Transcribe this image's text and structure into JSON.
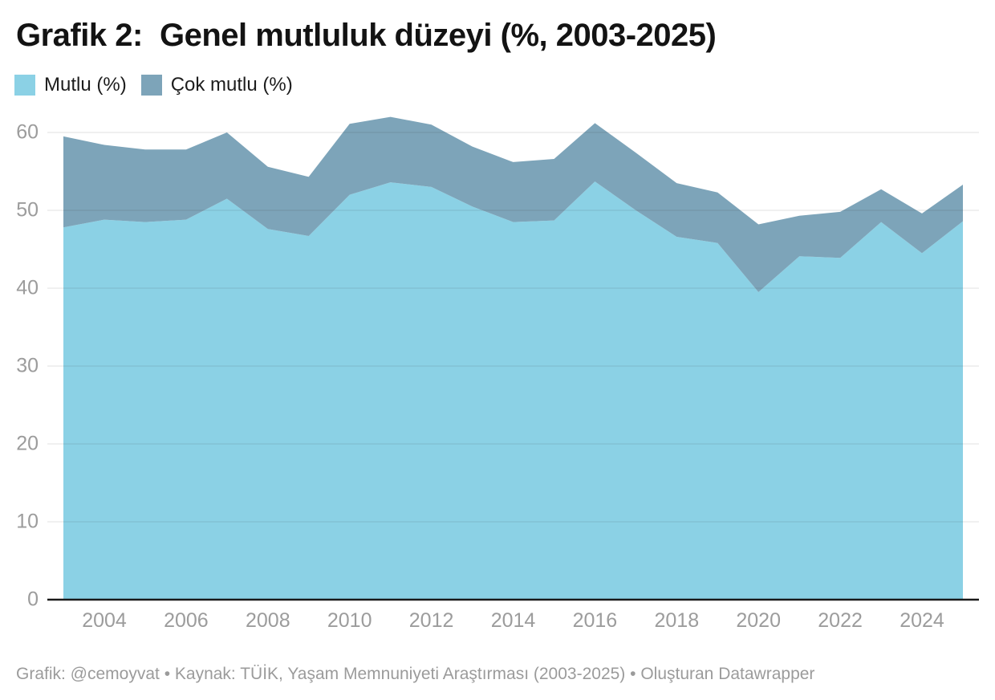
{
  "title": "Grafik 2:  Genel mutluluk düzeyi (%, 2003-2025)",
  "legend": [
    {
      "label": "Mutlu (%)",
      "color": "#8BD1E5"
    },
    {
      "label": "Çok mutlu (%)",
      "color": "#7DA4B9"
    }
  ],
  "footer": "Grafik: @cemoyvat • Kaynak: TÜİK, Yaşam Memnuniyeti Araştırması (2003-2025) • Oluşturan Datawrapper",
  "chart_data": {
    "type": "area",
    "stacked": true,
    "title": "Grafik 2: Genel mutluluk düzeyi (%, 2003-2025)",
    "x": [
      2003,
      2004,
      2005,
      2006,
      2007,
      2008,
      2009,
      2010,
      2011,
      2012,
      2013,
      2014,
      2015,
      2016,
      2017,
      2018,
      2019,
      2020,
      2021,
      2022,
      2023,
      2024,
      2025
    ],
    "series": [
      {
        "name": "Mutlu (%)",
        "color": "#8BD1E5",
        "values": [
          47.8,
          48.8,
          48.5,
          48.8,
          51.5,
          47.6,
          46.7,
          52.0,
          53.6,
          53.0,
          50.5,
          48.5,
          48.7,
          53.7,
          50.0,
          46.6,
          45.8,
          39.5,
          44.1,
          43.9,
          48.5,
          44.5,
          48.6
        ]
      },
      {
        "name": "Çok mutlu (%)",
        "color": "#7DA4B9",
        "values": [
          11.7,
          9.6,
          9.3,
          9.0,
          8.5,
          8.0,
          7.6,
          9.1,
          8.4,
          8.0,
          7.7,
          7.7,
          7.9,
          7.5,
          7.4,
          6.9,
          6.5,
          8.7,
          5.2,
          5.9,
          4.2,
          5.1,
          4.7
        ]
      }
    ],
    "stack_totals": [
      59.5,
      58.4,
      57.8,
      57.8,
      60.0,
      55.6,
      54.3,
      61.1,
      62.0,
      61.0,
      58.2,
      56.2,
      56.6,
      61.2,
      57.4,
      53.5,
      52.3,
      48.2,
      49.3,
      49.8,
      52.7,
      49.6,
      53.3
    ],
    "xticks": [
      2004,
      2006,
      2008,
      2010,
      2012,
      2014,
      2016,
      2018,
      2020,
      2022,
      2024
    ],
    "x_tick_labels": [
      "2004",
      "2006",
      "2008",
      "2010",
      "2012",
      "2014",
      "2016",
      "2018",
      "2020",
      "2022",
      "2024"
    ],
    "yticks": [
      0,
      10,
      20,
      30,
      40,
      50,
      60
    ],
    "y_tick_labels": [
      "0",
      "10",
      "20",
      "30",
      "40",
      "50",
      "60"
    ],
    "ylim": [
      0,
      62
    ],
    "xlabel": "",
    "ylabel": "",
    "grid": "horizontal",
    "legend_position": "top-left"
  }
}
